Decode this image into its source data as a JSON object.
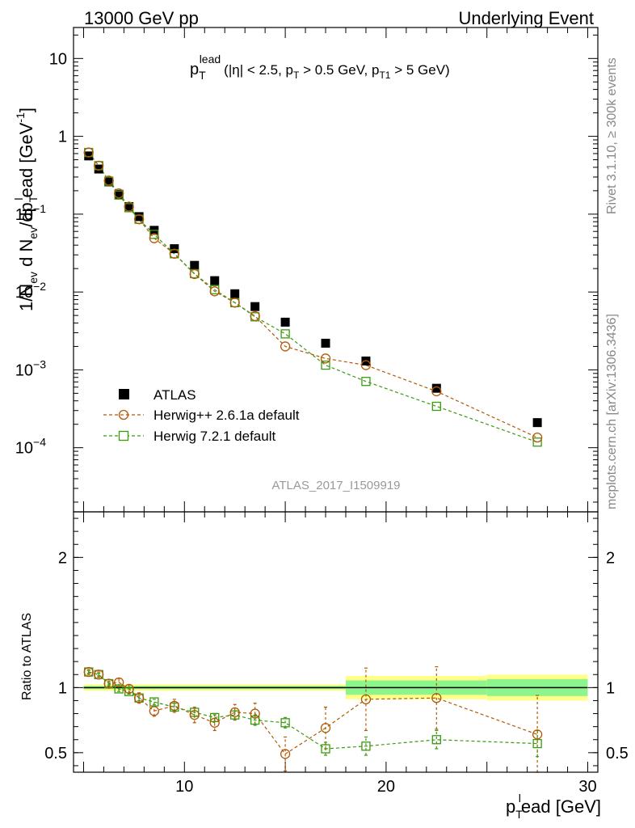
{
  "header": {
    "left": "13000 GeV pp",
    "right": "Underlying Event"
  },
  "side": {
    "rivet": "Rivet 3.1.10, ≥ 300k events",
    "mcplots": "mcplots.cern.ch [arXiv:1306.3436]"
  },
  "analysis_label": "ATLAS_2017_I1509919",
  "colors": {
    "atlas": "#000000",
    "herwigpp": "#b35806",
    "herwig7": "#3a9a10",
    "band_yellow": "#ffff8a",
    "band_green": "#8cf58c"
  },
  "chart_data": [
    {
      "type": "scatter",
      "title": "p_T^lead (|η| < 2.5, p_T > 0.5 GeV, p_T1 > 5 GeV)",
      "title_parts": {
        "p": "p",
        "T": "T",
        "lead": "lead",
        "cond1": "(|η| < 2.5, p",
        "cond2": " > 0.5 GeV, p",
        "T1": "T1",
        "cond3": " > 5 GeV)"
      },
      "ylabel": "1/N_ev d N_ev/dp_T^lead [GeV^-1]",
      "ylabel_parts": {
        "a": "1/N",
        "ev": "ev",
        "b": " d N",
        "c": "/dp",
        "T": "T",
        "l": "l",
        "d": "ead [GeV",
        "exp": "-1",
        "e": "]"
      },
      "yscale": "log",
      "ylim": [
        1.5e-05,
        25
      ],
      "xlim": [
        4.5,
        30.5
      ],
      "yticks": [
        {
          "v": 10,
          "label": "10"
        },
        {
          "v": 1,
          "label": "1"
        },
        {
          "v": 0.1,
          "base": "10",
          "exp": "−1"
        },
        {
          "v": 0.01,
          "base": "10",
          "exp": "−2"
        },
        {
          "v": 0.001,
          "base": "10",
          "exp": "−3"
        },
        {
          "v": 0.0001,
          "base": "10",
          "exp": "−4"
        }
      ],
      "legend_position": "lower-left",
      "series": [
        {
          "name": "ATLAS",
          "marker": "filled-square",
          "x": [
            5.25,
            5.75,
            6.25,
            6.75,
            7.25,
            7.75,
            8.5,
            9.5,
            10.5,
            11.5,
            12.5,
            13.5,
            15,
            17,
            19,
            22.5,
            27.5
          ],
          "y": [
            0.56,
            0.38,
            0.26,
            0.18,
            0.125,
            0.093,
            0.062,
            0.036,
            0.022,
            0.014,
            0.0095,
            0.0065,
            0.0041,
            0.0022,
            0.0013,
            0.00058,
            0.00021
          ]
        },
        {
          "name": "Herwig++ 2.6.1a default",
          "marker": "open-circle",
          "x": [
            5.25,
            5.75,
            6.25,
            6.75,
            7.25,
            7.75,
            8.5,
            9.5,
            10.5,
            11.5,
            12.5,
            13.5,
            15,
            17,
            19,
            22.5,
            27.5
          ],
          "y": [
            0.62,
            0.42,
            0.27,
            0.185,
            0.125,
            0.086,
            0.049,
            0.031,
            0.017,
            0.0102,
            0.0073,
            0.0049,
            0.002,
            0.0014,
            0.00115,
            0.00053,
            0.000135
          ]
        },
        {
          "name": "Herwig 7.2.1 default",
          "marker": "open-square",
          "x": [
            5.25,
            5.75,
            6.25,
            6.75,
            7.25,
            7.75,
            8.5,
            9.5,
            10.5,
            11.5,
            12.5,
            13.5,
            15,
            17,
            19,
            22.5,
            27.5
          ],
          "y": [
            0.62,
            0.42,
            0.265,
            0.176,
            0.121,
            0.086,
            0.055,
            0.031,
            0.0172,
            0.0107,
            0.0073,
            0.0048,
            0.0029,
            0.00115,
            0.00071,
            0.00034,
            0.000118
          ]
        }
      ]
    },
    {
      "type": "scatter",
      "title": "",
      "ylabel": "Ratio to ATLAS",
      "xlabel": "p_T^lead [GeV]",
      "xlabel_parts": {
        "p": "p",
        "T": "T",
        "l": "l",
        "rest": "ead [GeV]"
      },
      "ylim": [
        0.35,
        2.35
      ],
      "xlim": [
        4.5,
        30.5
      ],
      "yticks": [
        {
          "v": 0.5,
          "label": "0.5"
        },
        {
          "v": 1,
          "label": "1"
        },
        {
          "v": 2,
          "label": "2"
        }
      ],
      "xticks": [
        {
          "v": 10,
          "label": "10"
        },
        {
          "v": 20,
          "label": "20"
        },
        {
          "v": 30,
          "label": "30"
        }
      ],
      "bands": [
        {
          "x0": 5,
          "x1": 18,
          "yellow": 0.025,
          "green": 0.012
        },
        {
          "x0": 18,
          "x1": 25,
          "yellow": 0.09,
          "green": 0.055
        },
        {
          "x0": 25,
          "x1": 30,
          "yellow": 0.1,
          "green": 0.065
        }
      ],
      "series": [
        {
          "name": "Herwig++ 2.6.1a default",
          "x": [
            5.25,
            5.75,
            6.25,
            6.75,
            7.25,
            7.75,
            8.5,
            9.5,
            10.5,
            11.5,
            12.5,
            13.5,
            15,
            17,
            19,
            22.5,
            27.5
          ],
          "y": [
            1.12,
            1.1,
            1.03,
            1.04,
            0.99,
            0.92,
            0.82,
            0.86,
            0.79,
            0.73,
            0.81,
            0.8,
            0.49,
            0.69,
            0.91,
            0.92,
            0.64
          ],
          "err": [
            0.02,
            0.02,
            0.02,
            0.03,
            0.03,
            0.04,
            0.04,
            0.05,
            0.06,
            0.06,
            0.06,
            0.08,
            0.13,
            0.16,
            0.24,
            0.24,
            0.3
          ]
        },
        {
          "name": "Herwig 7.2.1 default",
          "x": [
            5.25,
            5.75,
            6.25,
            6.75,
            7.25,
            7.75,
            8.5,
            9.5,
            10.5,
            11.5,
            12.5,
            13.5,
            15,
            17,
            19,
            22.5,
            27.5
          ],
          "y": [
            1.12,
            1.1,
            1.03,
            0.99,
            0.97,
            0.92,
            0.89,
            0.85,
            0.81,
            0.77,
            0.79,
            0.75,
            0.73,
            0.53,
            0.55,
            0.6,
            0.57
          ],
          "err": [
            0.01,
            0.01,
            0.01,
            0.02,
            0.02,
            0.02,
            0.02,
            0.03,
            0.03,
            0.03,
            0.03,
            0.04,
            0.04,
            0.05,
            0.07,
            0.07,
            0.1
          ]
        }
      ]
    }
  ]
}
